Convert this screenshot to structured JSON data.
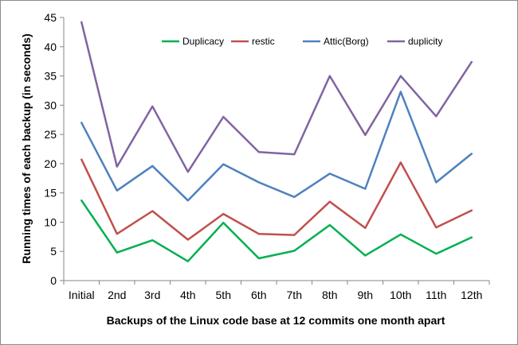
{
  "chart_data": {
    "type": "line",
    "title": "",
    "xlabel": "Backups of the Linux code base at 12 commits one month apart",
    "ylabel": "Running times of each backup  (in seconds)",
    "ylim": [
      0,
      45
    ],
    "yticks": [
      "0",
      "5",
      "10",
      "15",
      "20",
      "25",
      "30",
      "35",
      "40",
      "45"
    ],
    "categories": [
      "Initial",
      "2nd",
      "3rd",
      "4th",
      "5th",
      "6th",
      "7th",
      "8th",
      "9th",
      "10th",
      "11th",
      "12th"
    ],
    "grid": false,
    "legend_position": "top",
    "series": [
      {
        "name": "Duplicacy",
        "color": "#00b050",
        "values": [
          13.7,
          4.8,
          6.9,
          3.3,
          9.9,
          3.8,
          5.1,
          9.5,
          4.3,
          7.9,
          4.6,
          7.4
        ]
      },
      {
        "name": "restic",
        "color": "#c0504d",
        "values": [
          20.7,
          8.0,
          11.9,
          7.0,
          11.4,
          8.0,
          7.8,
          13.5,
          9.0,
          20.2,
          9.1,
          12.0
        ]
      },
      {
        "name": "Attic(Borg)",
        "color": "#4f81bd",
        "values": [
          27.0,
          15.4,
          19.6,
          13.7,
          19.9,
          16.8,
          14.3,
          18.3,
          15.7,
          32.3,
          16.8,
          21.7
        ]
      },
      {
        "name": "duplicity",
        "color": "#8064a2",
        "values": [
          44.2,
          19.5,
          29.8,
          18.6,
          28.0,
          22.0,
          21.6,
          35.0,
          24.9,
          35.0,
          28.1,
          37.4
        ]
      }
    ]
  }
}
